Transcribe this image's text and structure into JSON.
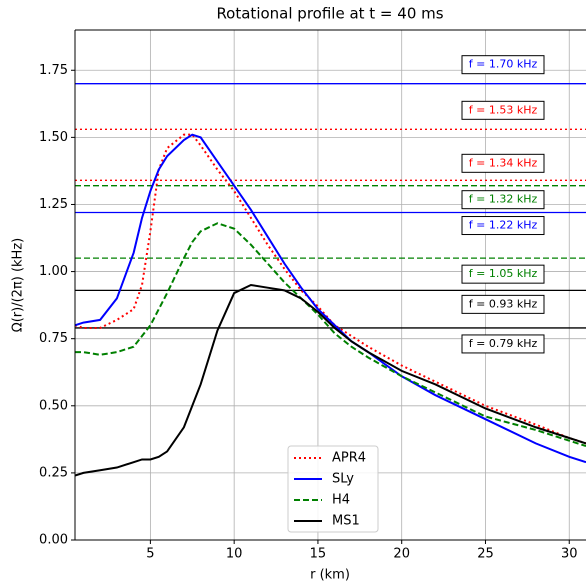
{
  "chart_data": {
    "type": "line",
    "title": "Rotational profile at t = 40 ms",
    "xlabel": "r (km)",
    "ylabel": "Ω(r)/(2π) (kHz)",
    "xlim": [
      0.5,
      31
    ],
    "ylim": [
      0,
      1.9
    ],
    "xticks": [
      5,
      10,
      15,
      20,
      25,
      30
    ],
    "yticks": [
      {
        "value": 0,
        "label": "0.00"
      },
      {
        "value": 0.25,
        "label": "0.25"
      },
      {
        "value": 0.5,
        "label": "0.50"
      },
      {
        "value": 0.75,
        "label": "0.75"
      },
      {
        "value": 1,
        "label": "1.00"
      },
      {
        "value": 1.25,
        "label": "1.25"
      },
      {
        "value": 1.5,
        "label": "1.50"
      },
      {
        "value": 1.75,
        "label": "1.75"
      }
    ],
    "grid": true,
    "legend": "lower center",
    "x": [
      0.5,
      1,
      2,
      3,
      4,
      4.5,
      5,
      5.5,
      6,
      7,
      7.5,
      8,
      9,
      10,
      11,
      12,
      13,
      14,
      15,
      16,
      17,
      18,
      20,
      22,
      25,
      28,
      30,
      31
    ],
    "series": [
      {
        "name": "APR4",
        "color": "#ff0000",
        "linestyle": "dotted",
        "values": [
          0.8,
          0.79,
          0.79,
          0.82,
          0.86,
          0.95,
          1.15,
          1.38,
          1.46,
          1.51,
          1.51,
          1.47,
          1.38,
          1.3,
          1.2,
          1.1,
          1.01,
          0.93,
          0.87,
          0.8,
          0.76,
          0.72,
          0.65,
          0.59,
          0.5,
          0.43,
          0.38,
          0.36
        ]
      },
      {
        "name": "SLy",
        "color": "#0000ff",
        "linestyle": "solid",
        "values": [
          0.8,
          0.81,
          0.82,
          0.9,
          1.07,
          1.2,
          1.3,
          1.38,
          1.43,
          1.49,
          1.51,
          1.5,
          1.41,
          1.32,
          1.23,
          1.13,
          1.03,
          0.94,
          0.86,
          0.8,
          0.74,
          0.7,
          0.61,
          0.54,
          0.45,
          0.36,
          0.31,
          0.29
        ]
      },
      {
        "name": "H4",
        "color": "#008000",
        "linestyle": "dashed",
        "values": [
          0.7,
          0.7,
          0.69,
          0.7,
          0.72,
          0.76,
          0.8,
          0.86,
          0.92,
          1.05,
          1.11,
          1.15,
          1.18,
          1.16,
          1.1,
          1.03,
          0.96,
          0.9,
          0.84,
          0.77,
          0.72,
          0.68,
          0.61,
          0.55,
          0.46,
          0.41,
          0.37,
          0.35
        ]
      },
      {
        "name": "MS1",
        "color": "#000000",
        "linestyle": "solid",
        "values": [
          0.24,
          0.25,
          0.26,
          0.27,
          0.29,
          0.3,
          0.3,
          0.31,
          0.33,
          0.42,
          0.5,
          0.58,
          0.78,
          0.92,
          0.95,
          0.94,
          0.93,
          0.9,
          0.85,
          0.79,
          0.74,
          0.7,
          0.63,
          0.58,
          0.49,
          0.42,
          0.38,
          0.36
        ]
      }
    ],
    "hlines": [
      {
        "value": 1.7,
        "color": "#0000ff",
        "linestyle": "solid",
        "label": "f = 1.70 kHz"
      },
      {
        "value": 1.53,
        "color": "#ff0000",
        "linestyle": "dotted",
        "label": "f = 1.53 kHz"
      },
      {
        "value": 1.34,
        "color": "#ff0000",
        "linestyle": "dotted",
        "label": "f = 1.34 kHz"
      },
      {
        "value": 1.32,
        "color": "#008000",
        "linestyle": "dashed",
        "label": "f = 1.32 kHz"
      },
      {
        "value": 1.22,
        "color": "#0000ff",
        "linestyle": "solid",
        "label": "f = 1.22 kHz"
      },
      {
        "value": 1.05,
        "color": "#008000",
        "linestyle": "dashed",
        "label": "f = 1.05 kHz"
      },
      {
        "value": 0.93,
        "color": "#000000",
        "linestyle": "solid",
        "label": "f = 0.93 kHz"
      },
      {
        "value": 0.79,
        "color": "#000000",
        "linestyle": "solid",
        "label": "f = 0.79 kHz"
      }
    ]
  }
}
